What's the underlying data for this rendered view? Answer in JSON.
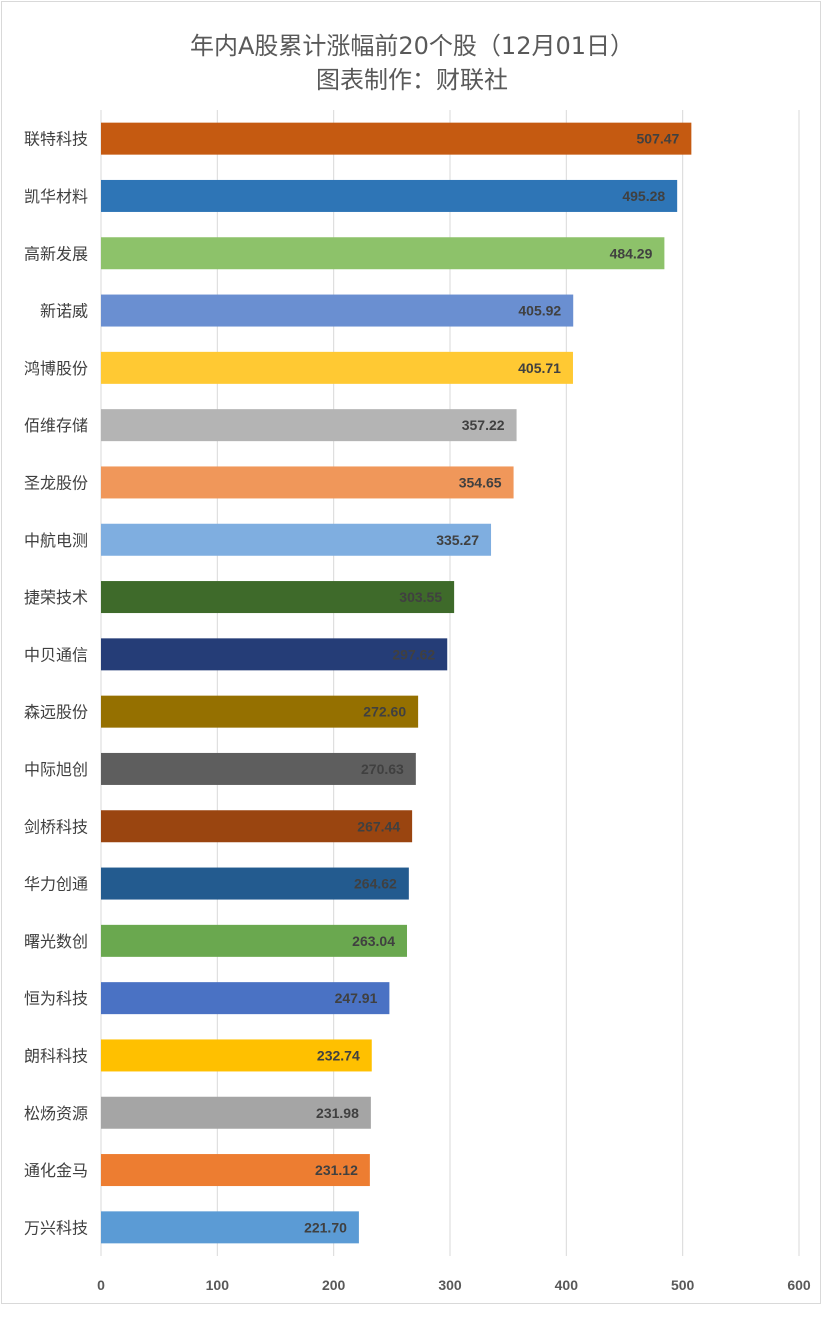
{
  "title_line1": "年内A股累计涨幅前20个股（12月01日）",
  "title_line2": "图表制作：财联社",
  "chart_data": {
    "type": "bar",
    "orientation": "horizontal",
    "title": "年内A股累计涨幅前20个股（12月01日） 图表制作：财联社",
    "categories": [
      "联特科技",
      "凯华材料",
      "高新发展",
      "新诺威",
      "鸿博股份",
      "佰维存储",
      "圣龙股份",
      "中航电测",
      "捷荣技术",
      "中贝通信",
      "森远股份",
      "中际旭创",
      "剑桥科技",
      "华力创通",
      "曙光数创",
      "恒为科技",
      "朗科科技",
      "松炀资源",
      "通化金马",
      "万兴科技"
    ],
    "values": [
      507.47,
      495.28,
      484.29,
      405.92,
      405.71,
      357.22,
      354.65,
      335.27,
      303.55,
      297.62,
      272.6,
      270.63,
      267.44,
      264.62,
      263.04,
      247.91,
      232.74,
      231.98,
      231.12,
      221.7
    ],
    "value_labels": [
      "507.47",
      "495.28",
      "484.29",
      "405.92",
      "405.71",
      "357.22",
      "354.65",
      "335.27",
      "303.55",
      "297.62",
      "272.60",
      "270.63",
      "267.44",
      "264.62",
      "263.04",
      "247.91",
      "232.74",
      "231.98",
      "231.12",
      "221.70"
    ],
    "colors": [
      "#c55a11",
      "#2e75b6",
      "#8dc26a",
      "#6a8fd1",
      "#ffc933",
      "#b4b4b4",
      "#f0975a",
      "#7faee0",
      "#3e6a2a",
      "#253d77",
      "#957000",
      "#5e5e5e",
      "#9a4510",
      "#235b8f",
      "#6aa84f",
      "#4a72c4",
      "#ffc000",
      "#a5a5a5",
      "#ed7d31",
      "#5b9bd5"
    ],
    "xlim": [
      0,
      600
    ],
    "xticks": [
      "0",
      "100",
      "200",
      "300",
      "400",
      "500",
      "600"
    ],
    "grid": true,
    "legend": "none"
  }
}
